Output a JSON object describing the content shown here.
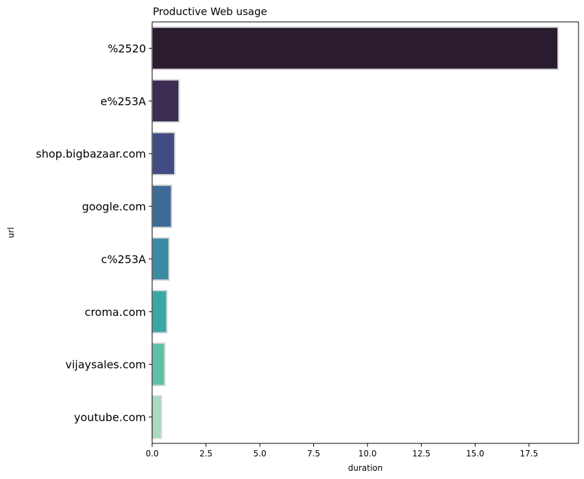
{
  "chart_data": {
    "type": "bar",
    "orientation": "horizontal",
    "title": "Productive Web usage",
    "xlabel": "duration",
    "ylabel": "url",
    "xlim": [
      0,
      19.8
    ],
    "xticks": [
      0.0,
      2.5,
      5.0,
      7.5,
      10.0,
      12.5,
      15.0,
      17.5
    ],
    "xtick_labels": [
      "0.0",
      "2.5",
      "5.0",
      "7.5",
      "10.0",
      "12.5",
      "15.0",
      "17.5"
    ],
    "categories": [
      "%2520",
      "e%253A",
      "shop.bigbazaar.com",
      "google.com",
      "c%253A",
      "croma.com",
      "vijaysales.com",
      "youtube.com"
    ],
    "values": [
      18.85,
      1.25,
      1.05,
      0.9,
      0.78,
      0.68,
      0.58,
      0.42
    ],
    "colors": [
      "#2b1b2e",
      "#3c2c51",
      "#434b84",
      "#3e6a98",
      "#3a8aa3",
      "#3ba6a7",
      "#5dc1a6",
      "#a8dbbf"
    ],
    "grid": false,
    "legend": "none"
  }
}
